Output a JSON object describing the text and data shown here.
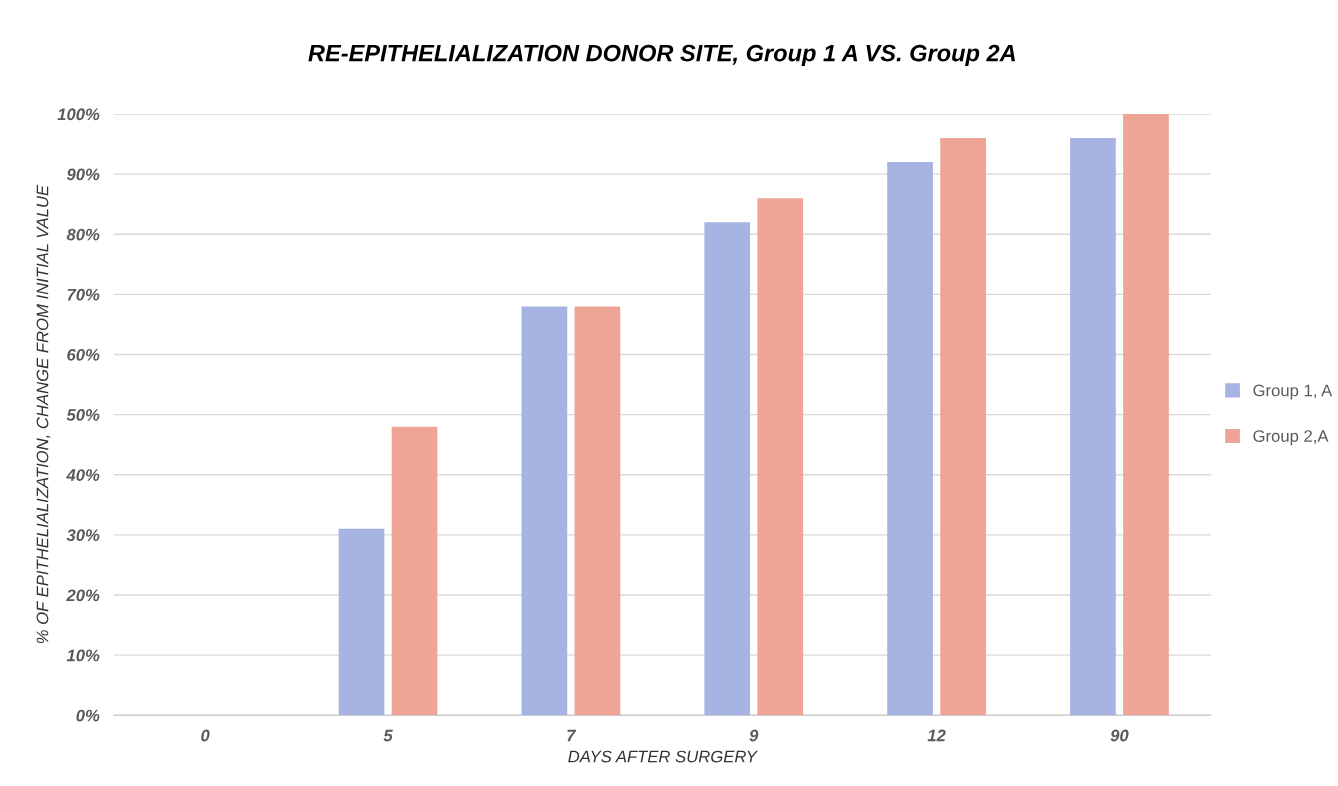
{
  "chart_data": {
    "type": "bar",
    "title": "RE-EPITHELIALIZATION DONOR SITE, Group 1 A VS. Group 2A",
    "xlabel": "DAYS AFTER SURGERY",
    "ylabel": "% OF EPITHELIALIZATION, CHANGE FROM INITIAL VALUE",
    "categories": [
      "0",
      "5",
      "7",
      "9",
      "12",
      "90"
    ],
    "series": [
      {
        "name": "Group 1, A",
        "color": "#a7b3e3",
        "values": [
          0,
          31,
          68,
          82,
          92,
          96
        ]
      },
      {
        "name": "Group 2,A",
        "color": "#eea596",
        "values": [
          0,
          48,
          68,
          86,
          96,
          100
        ]
      }
    ],
    "ylim": [
      0,
      100
    ],
    "yticks": [
      {
        "value": 0,
        "label": "0%"
      },
      {
        "value": 10,
        "label": "10%"
      },
      {
        "value": 20,
        "label": "20%"
      },
      {
        "value": 30,
        "label": "30%"
      },
      {
        "value": 40,
        "label": "40%"
      },
      {
        "value": 50,
        "label": "50%"
      },
      {
        "value": 60,
        "label": "60%"
      },
      {
        "value": 70,
        "label": "70%"
      },
      {
        "value": 80,
        "label": "80%"
      },
      {
        "value": 90,
        "label": "90%"
      },
      {
        "value": 100,
        "label": "100%"
      }
    ],
    "grid": "y",
    "legend": "right"
  }
}
